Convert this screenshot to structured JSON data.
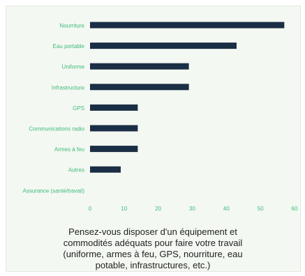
{
  "chart_data": {
    "type": "bar",
    "orientation": "horizontal",
    "categories": [
      "Nourriture",
      "Eau portable",
      "Uniforme",
      "Infrastructure",
      "GPS",
      "Communications radio",
      "Armes à feu",
      "Autres",
      "Assurance (santé/travail)"
    ],
    "values": [
      57,
      43,
      29,
      29,
      14,
      14,
      14,
      9,
      0
    ],
    "xlim": [
      0,
      60
    ],
    "xticks": [
      0,
      10,
      20,
      30,
      40,
      50,
      60
    ],
    "grid": false,
    "title_lines": [
      "Pensez-vous disposer d'un équipement et",
      "commodités adéquats pour faire votre travail",
      "(uniforme, armes à feu, GPS, nourriture, eau",
      "potable, infrastructures, etc.)"
    ]
  },
  "colors": {
    "bar": "#1a2e45",
    "category_label": "#3dbb7a",
    "tick_label": "#3dbb7a",
    "title": "#1f1f1f",
    "background": "#f4f8f2"
  }
}
